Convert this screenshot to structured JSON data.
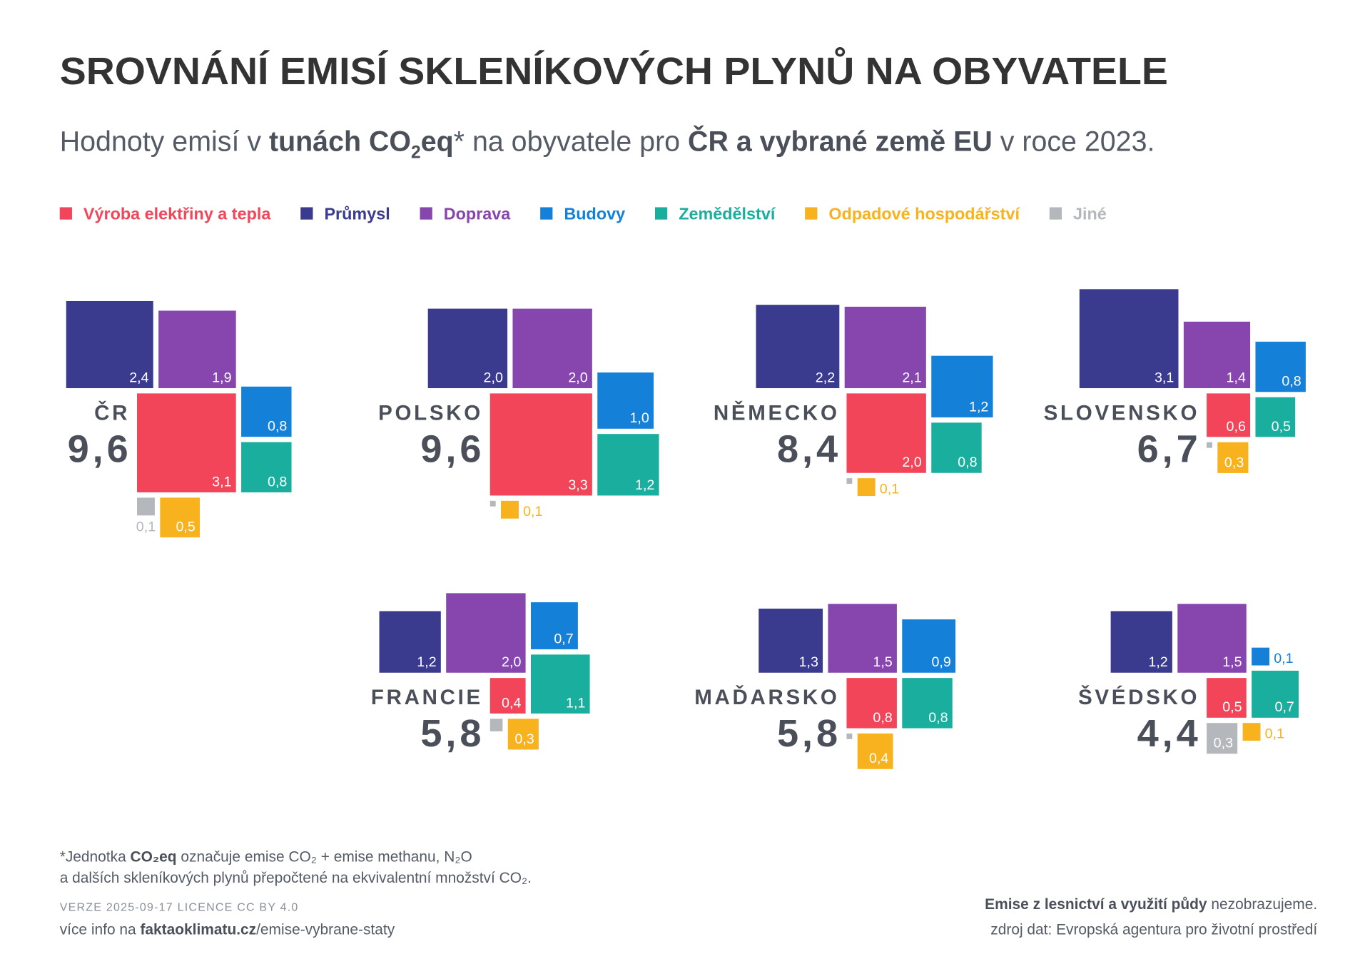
{
  "chart_data": {
    "type": "square-area",
    "title": "SROVNÁNÍ EMISÍ SKLENÍKOVÝCH PLYNŮ NA OBYVATELE",
    "subtitle": [
      "Hodnoty emisí v ",
      "tunách CO",
      "2",
      "eq",
      "* na obyvatele pro ",
      "ČR a vybrané země EU",
      " v roce 2023."
    ],
    "categories": [
      "ČR",
      "POLSKO",
      "NĚMECKO",
      "SLOVENSKO",
      "FRANCIE",
      "MAĎARSKO",
      "ŠVÉDSKO"
    ],
    "totals": [
      {
        "value": 9.6,
        "label": "9,6"
      },
      {
        "value": 9.6,
        "label": "9,6"
      },
      {
        "value": 8.4,
        "label": "8,4"
      },
      {
        "value": 6.7,
        "label": "6,7"
      },
      {
        "value": 5.8,
        "label": "5,8"
      },
      {
        "value": 5.8,
        "label": "5,8"
      },
      {
        "value": 4.4,
        "label": "4,4"
      }
    ],
    "series": [
      {
        "name": "Výroba elektřiny a tepla",
        "color": "#f2455a",
        "values": [
          3.1,
          3.3,
          2.0,
          0.6,
          0.4,
          0.8,
          0.5
        ],
        "value_labels": [
          "3,1",
          "3,3",
          "2,0",
          "0,6",
          "0,4",
          "0,8",
          "0,5"
        ]
      },
      {
        "name": "Průmysl",
        "color": "#3a3a8f",
        "values": [
          2.4,
          2.0,
          2.2,
          3.1,
          1.2,
          1.3,
          1.2
        ],
        "value_labels": [
          "2,4",
          "2,0",
          "2,2",
          "3,1",
          "1,2",
          "1,3",
          "1,2"
        ]
      },
      {
        "name": "Doprava",
        "color": "#8646ad",
        "values": [
          1.9,
          2.0,
          2.1,
          1.4,
          2.0,
          1.5,
          1.5
        ],
        "value_labels": [
          "1,9",
          "2,0",
          "2,1",
          "1,4",
          "2,0",
          "1,5",
          "1,5"
        ]
      },
      {
        "name": "Budovy",
        "color": "#1580d8",
        "values": [
          0.8,
          1.0,
          1.2,
          0.8,
          0.7,
          0.9,
          0.1
        ],
        "value_labels": [
          "0,8",
          "1,0",
          "1,2",
          "0,8",
          "0,7",
          "0,9",
          "0,1"
        ]
      },
      {
        "name": "Zemědělství",
        "color": "#1aae9e",
        "values": [
          0.8,
          1.2,
          0.8,
          0.5,
          1.1,
          0.8,
          0.7
        ],
        "value_labels": [
          "0,8",
          "1,2",
          "0,8",
          "0,5",
          "1,1",
          "0,8",
          "0,7"
        ]
      },
      {
        "name": "Odpadové hospodářství",
        "color": "#f7b21e",
        "values": [
          0.5,
          0.1,
          0.1,
          0.3,
          0.3,
          0.4,
          0.1
        ],
        "value_labels": [
          "0,5",
          "0,1",
          "0,1",
          "0,3",
          "0,3",
          "0,4",
          "0,1"
        ]
      },
      {
        "name": "Jiné",
        "color": "#b4b8bd",
        "values": [
          0.1,
          0.01,
          0.01,
          0.01,
          0.05,
          0.01,
          0.3
        ],
        "value_labels": [
          "0,1",
          null,
          null,
          null,
          null,
          null,
          "0,3"
        ]
      }
    ]
  },
  "footnote": [
    "*Jednotka ",
    "CO₂eq",
    " označuje emise CO₂ + emise methanu, N₂O",
    "a dalších skleníkových plynů přepočtené na ekvivalentní množství CO₂."
  ],
  "footer": {
    "version": "VERZE 2025-09-17",
    "license": "LICENCE CC BY 4.0",
    "link": [
      "více info na ",
      "faktaoklimatu.cz",
      "/emise-vybrane-staty"
    ],
    "note": [
      "Emise z lesnictví a využití půdy",
      " nezobrazujeme."
    ],
    "source": "zdroj dat: Evropská agentura pro životní prostředí"
  }
}
